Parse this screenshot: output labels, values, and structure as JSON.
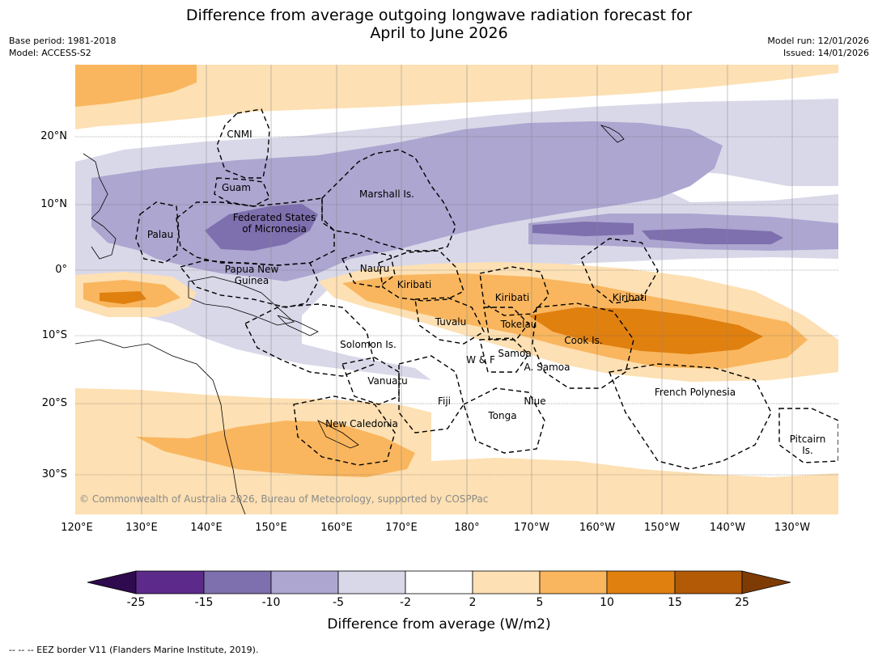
{
  "title": {
    "line1": "Difference from average outgoing longwave radiation forecast for",
    "line2": "April to June 2026"
  },
  "meta": {
    "base_period": "Base period: 1981-2018",
    "model": "Model: ACCESS-S2",
    "model_run": "Model run: 12/01/2026",
    "issued": "Issued: 14/01/2026"
  },
  "axes": {
    "lat_labels": [
      "20°N",
      "10°N",
      "0°",
      "10°S",
      "20°S",
      "30°S"
    ],
    "lon_labels": [
      "120°E",
      "130°E",
      "140°E",
      "150°E",
      "160°E",
      "170°E",
      "180°",
      "170°W",
      "160°W",
      "150°W",
      "140°W",
      "130°W"
    ]
  },
  "places": {
    "cnmi": "CNMI",
    "guam": "Guam",
    "marshall": "Marshall Is.",
    "fsm_line1": "Federated States",
    "fsm_line2": "of Micronesia",
    "palau": "Palau",
    "png_line1": "Papua New",
    "png_line2": "Guinea",
    "nauru": "Nauru",
    "kiribati_w": "Kiribati",
    "kiribati_c": "Kiribati",
    "kiribati_e": "Kiribati",
    "tuvalu": "Tuvalu",
    "tokelau": "Tokelau",
    "cook": "Cook Is.",
    "solomon": "Solomon Is.",
    "wf": "W & F",
    "samoa": "Samoa",
    "am_samoa": "A. Samoa",
    "vanuatu": "Vanuatu",
    "fiji": "Fiji",
    "niue": "Niue",
    "tonga": "Tonga",
    "fp": "French Polynesia",
    "new_caledonia": "New Caledonia",
    "pitcairn_line1": "Pitcairn",
    "pitcairn_line2": "Is."
  },
  "copyright": "© Commonwealth of Australia 2026, Bureau of Meteorology, supported by COSPPac",
  "colorbar": {
    "ticks": [
      "-25",
      "-15",
      "-10",
      "-5",
      "-2",
      "2",
      "5",
      "10",
      "15",
      "25"
    ],
    "colors": [
      "#5c2a8a",
      "#7e6fae",
      "#aca6d0",
      "#d9d8e9",
      "#ffffff",
      "#fde0b3",
      "#f9b65e",
      "#e0800f",
      "#b35a06"
    ],
    "extend_low": "#2f0a4e",
    "extend_high": "#7f3b04",
    "title": "Difference from average (W/m2)"
  },
  "footnote": "--  --  -- EEZ border V11 (Flanders Marine Institute, 2019)."
}
